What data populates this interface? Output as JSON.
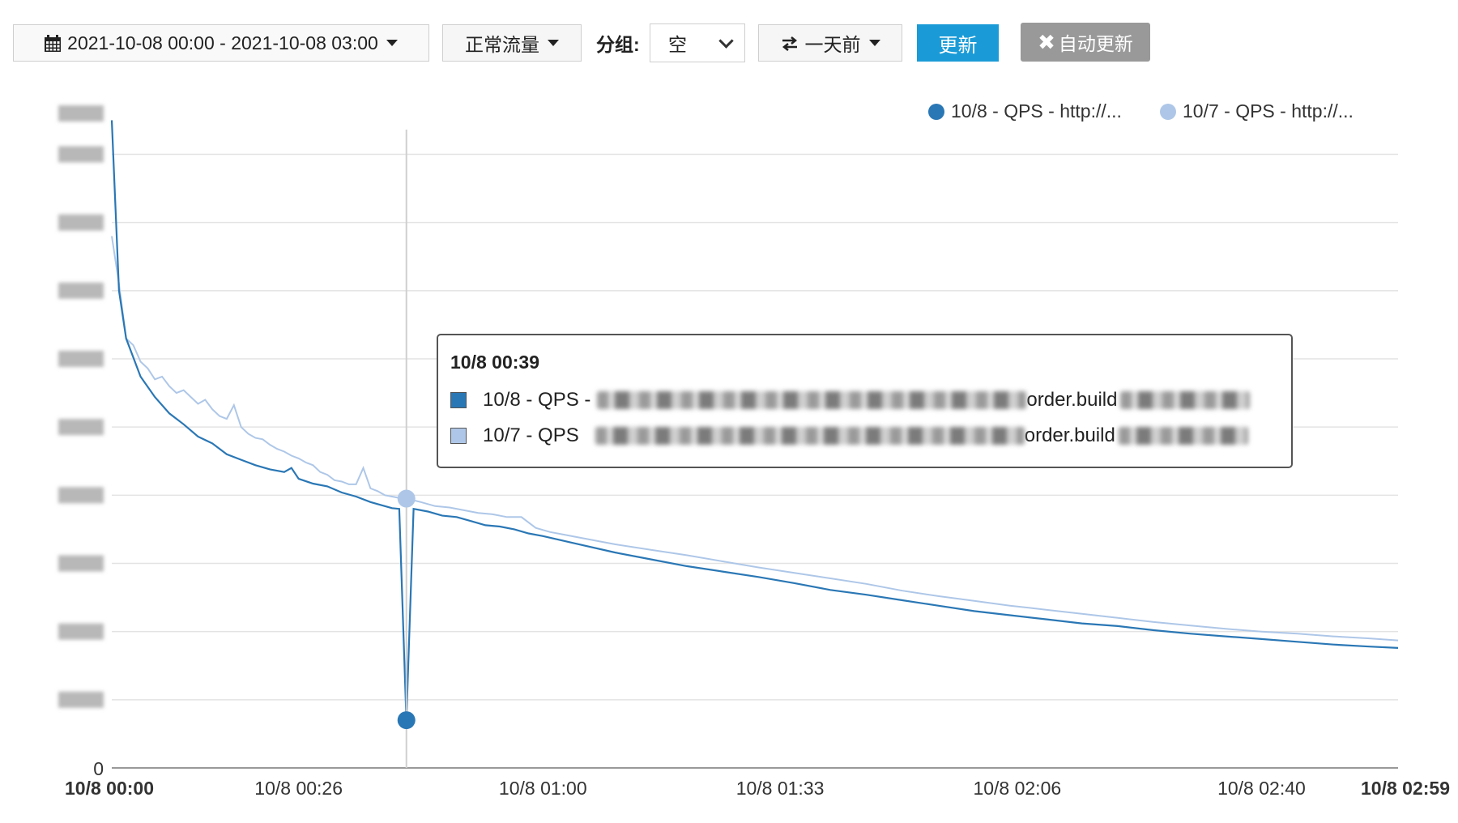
{
  "toolbar": {
    "date_range": "2021-10-08 00:00 - 2021-10-08 03:00",
    "traffic_type": "正常流量",
    "group_label": "分组:",
    "group_value": "空",
    "compare": "一天前",
    "update_button": "更新",
    "auto_update_button": "自动更新",
    "icons": [
      "calendar-icon",
      "swap-icon",
      "close-icon"
    ]
  },
  "tooltip": {
    "title": "10/8 00:39",
    "rows": [
      {
        "label": "10/8 - QPS -",
        "suffix": "order.build"
      },
      {
        "label": "10/7 - QPS",
        "suffix": "order.build"
      }
    ]
  },
  "colors": {
    "series_1": "#2a77b5",
    "series_2": "#aec7e8",
    "primary_button": "#1a9bd7",
    "disabled_button": "#999999",
    "grid": "#e3e3e3"
  },
  "chart_data": {
    "type": "line",
    "x_tick_labels": [
      "10/8 00:00",
      "10/8 00:26",
      "10/8 01:00",
      "10/8 01:33",
      "10/8 02:06",
      "10/8 02:40",
      "10/8 02:59"
    ],
    "xlim_minutes": [
      0,
      179
    ],
    "y_tick_labels": [
      "0"
    ],
    "ylim": [
      0,
      4800
    ],
    "grid": true,
    "legend_position": "top-right",
    "highlight_minute": 39,
    "series": [
      {
        "name": "10/8 - QPS - http://...",
        "color": "#2a77b5",
        "points": [
          [
            0,
            4750
          ],
          [
            1,
            3500
          ],
          [
            2,
            3150
          ],
          [
            4,
            2870
          ],
          [
            6,
            2720
          ],
          [
            8,
            2600
          ],
          [
            10,
            2520
          ],
          [
            12,
            2430
          ],
          [
            14,
            2380
          ],
          [
            16,
            2300
          ],
          [
            18,
            2260
          ],
          [
            20,
            2220
          ],
          [
            22,
            2190
          ],
          [
            24,
            2170
          ],
          [
            25,
            2200
          ],
          [
            26,
            2120
          ],
          [
            28,
            2085
          ],
          [
            30,
            2065
          ],
          [
            32,
            2020
          ],
          [
            34,
            1990
          ],
          [
            36,
            1950
          ],
          [
            38,
            1920
          ],
          [
            39,
            1905
          ],
          [
            40,
            1900
          ],
          [
            41,
            350
          ],
          [
            42,
            1900
          ],
          [
            44,
            1880
          ],
          [
            46,
            1850
          ],
          [
            48,
            1840
          ],
          [
            50,
            1810
          ],
          [
            52,
            1780
          ],
          [
            54,
            1770
          ],
          [
            56,
            1750
          ],
          [
            58,
            1720
          ],
          [
            60,
            1700
          ],
          [
            65,
            1640
          ],
          [
            70,
            1580
          ],
          [
            75,
            1530
          ],
          [
            80,
            1480
          ],
          [
            85,
            1440
          ],
          [
            90,
            1400
          ],
          [
            95,
            1355
          ],
          [
            100,
            1305
          ],
          [
            105,
            1270
          ],
          [
            110,
            1230
          ],
          [
            115,
            1190
          ],
          [
            120,
            1150
          ],
          [
            125,
            1120
          ],
          [
            130,
            1090
          ],
          [
            135,
            1060
          ],
          [
            140,
            1040
          ],
          [
            145,
            1010
          ],
          [
            150,
            985
          ],
          [
            155,
            965
          ],
          [
            160,
            945
          ],
          [
            165,
            925
          ],
          [
            170,
            905
          ],
          [
            175,
            890
          ],
          [
            179,
            880
          ]
        ]
      },
      {
        "name": "10/7 - QPS - http://...",
        "color": "#aec7e8",
        "points": [
          [
            0,
            3900
          ],
          [
            1,
            3550
          ],
          [
            2,
            3150
          ],
          [
            3,
            3100
          ],
          [
            4,
            2980
          ],
          [
            5,
            2930
          ],
          [
            6,
            2850
          ],
          [
            7,
            2870
          ],
          [
            8,
            2800
          ],
          [
            9,
            2750
          ],
          [
            10,
            2770
          ],
          [
            11,
            2720
          ],
          [
            12,
            2670
          ],
          [
            13,
            2700
          ],
          [
            14,
            2630
          ],
          [
            15,
            2580
          ],
          [
            16,
            2560
          ],
          [
            17,
            2660
          ],
          [
            18,
            2500
          ],
          [
            19,
            2450
          ],
          [
            20,
            2420
          ],
          [
            21,
            2410
          ],
          [
            22,
            2370
          ],
          [
            23,
            2340
          ],
          [
            24,
            2320
          ],
          [
            25,
            2290
          ],
          [
            26,
            2270
          ],
          [
            27,
            2240
          ],
          [
            28,
            2220
          ],
          [
            29,
            2170
          ],
          [
            30,
            2150
          ],
          [
            31,
            2110
          ],
          [
            32,
            2100
          ],
          [
            33,
            2080
          ],
          [
            34,
            2080
          ],
          [
            35,
            2200
          ],
          [
            36,
            2050
          ],
          [
            37,
            2030
          ],
          [
            38,
            2000
          ],
          [
            39,
            1990
          ],
          [
            40,
            1980
          ],
          [
            41,
            1975
          ],
          [
            43,
            1950
          ],
          [
            45,
            1920
          ],
          [
            47,
            1910
          ],
          [
            49,
            1890
          ],
          [
            51,
            1870
          ],
          [
            53,
            1860
          ],
          [
            55,
            1840
          ],
          [
            57,
            1840
          ],
          [
            59,
            1760
          ],
          [
            61,
            1730
          ],
          [
            63,
            1710
          ],
          [
            65,
            1690
          ],
          [
            70,
            1640
          ],
          [
            75,
            1600
          ],
          [
            80,
            1560
          ],
          [
            85,
            1515
          ],
          [
            90,
            1470
          ],
          [
            95,
            1430
          ],
          [
            100,
            1390
          ],
          [
            105,
            1350
          ],
          [
            110,
            1300
          ],
          [
            115,
            1260
          ],
          [
            120,
            1225
          ],
          [
            125,
            1190
          ],
          [
            130,
            1160
          ],
          [
            135,
            1130
          ],
          [
            140,
            1100
          ],
          [
            145,
            1070
          ],
          [
            150,
            1045
          ],
          [
            155,
            1020
          ],
          [
            160,
            1000
          ],
          [
            165,
            985
          ],
          [
            170,
            965
          ],
          [
            175,
            950
          ],
          [
            179,
            935
          ]
        ]
      }
    ]
  }
}
